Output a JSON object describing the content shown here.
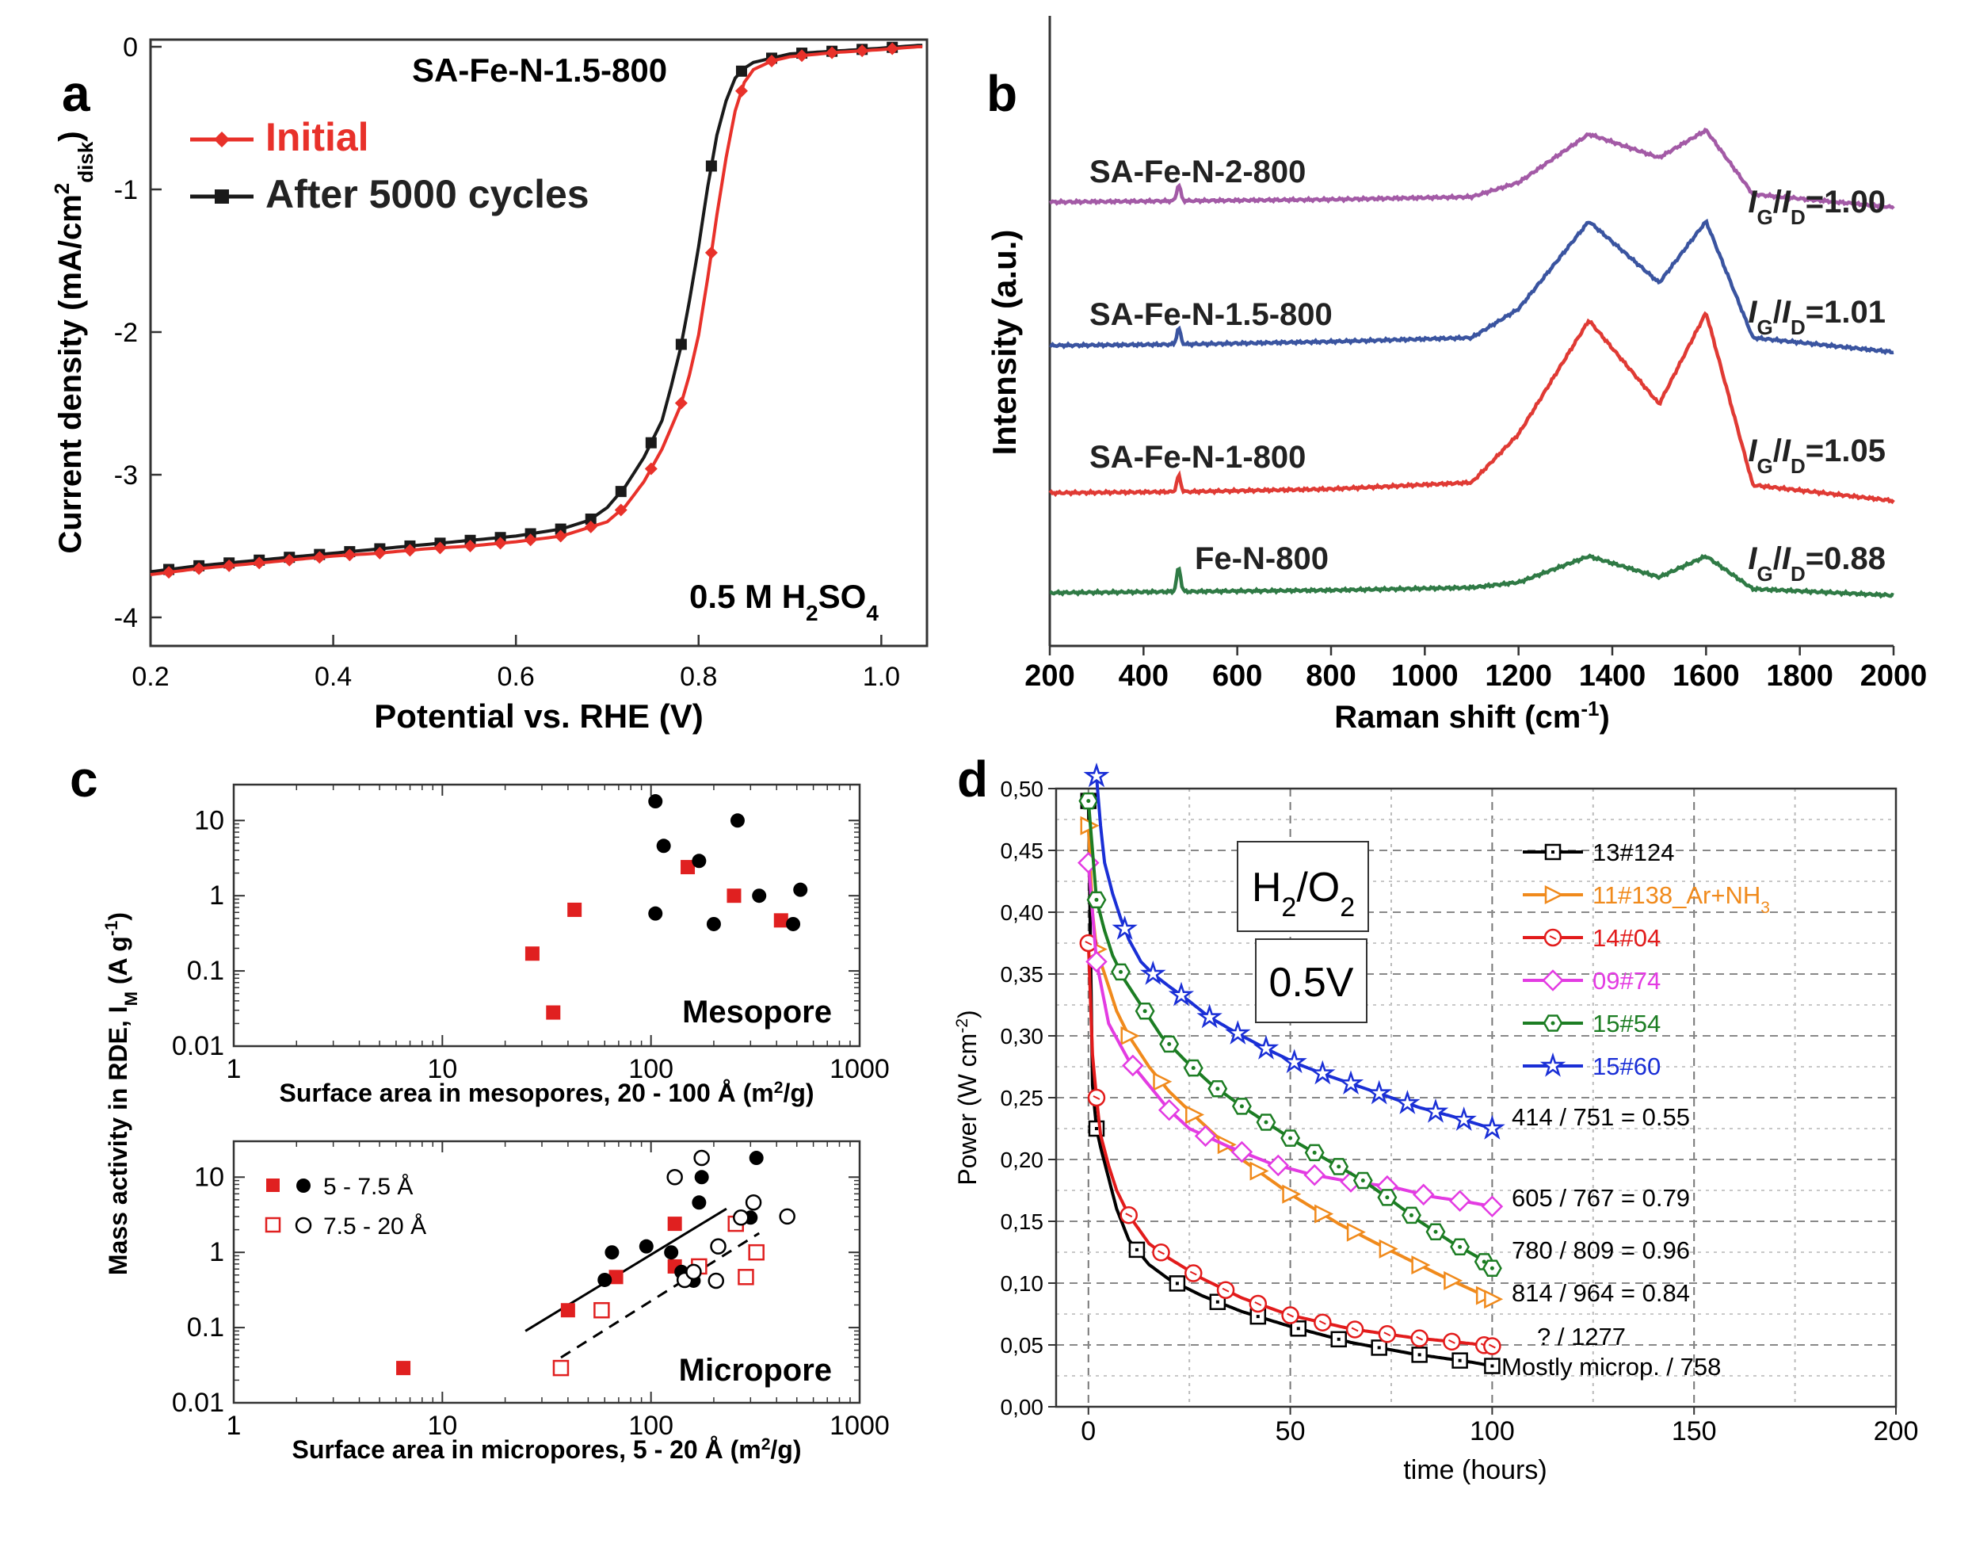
{
  "chart_data": [
    {
      "panel": "a",
      "type": "line",
      "title": "SA-Fe-N-1.5-800",
      "annotation": "0.5 M H2SO4",
      "xlabel": "Potential vs. RHE (V)",
      "ylabel": "Current density (mA/cm2disk)",
      "xlim": [
        0.2,
        1.05
      ],
      "ylim": [
        -4.2,
        0.05
      ],
      "xticks": [
        "0.2",
        "0.4",
        "0.6",
        "0.8",
        "1.0"
      ],
      "yticks": [
        "0",
        "-1",
        "-2",
        "-3",
        "-4"
      ],
      "legend_position": "top-left",
      "colors": {
        "Initial": "#e8312a",
        "After 5000 cycles": "#1a1a1a"
      },
      "series": [
        {
          "name": "Initial",
          "x": [
            0.2,
            0.25,
            0.3,
            0.35,
            0.4,
            0.45,
            0.5,
            0.55,
            0.6,
            0.65,
            0.7,
            0.72,
            0.74,
            0.76,
            0.78,
            0.79,
            0.8,
            0.81,
            0.82,
            0.83,
            0.84,
            0.85,
            0.86,
            0.88,
            0.9,
            0.95,
            1.0,
            1.04
          ],
          "y": [
            -3.7,
            -3.66,
            -3.63,
            -3.6,
            -3.57,
            -3.55,
            -3.52,
            -3.5,
            -3.47,
            -3.43,
            -3.33,
            -3.22,
            -3.05,
            -2.82,
            -2.52,
            -2.3,
            -2.02,
            -1.62,
            -1.18,
            -0.78,
            -0.45,
            -0.25,
            -0.16,
            -0.1,
            -0.07,
            -0.04,
            -0.02,
            0.0
          ]
        },
        {
          "name": "After 5000 cycles",
          "x": [
            0.2,
            0.25,
            0.3,
            0.35,
            0.4,
            0.45,
            0.5,
            0.55,
            0.6,
            0.65,
            0.68,
            0.7,
            0.72,
            0.74,
            0.76,
            0.77,
            0.78,
            0.79,
            0.8,
            0.81,
            0.82,
            0.83,
            0.84,
            0.85,
            0.86,
            0.88,
            0.9,
            0.95,
            1.0,
            1.04
          ],
          "y": [
            -3.68,
            -3.64,
            -3.61,
            -3.58,
            -3.55,
            -3.52,
            -3.49,
            -3.46,
            -3.43,
            -3.38,
            -3.32,
            -3.23,
            -3.08,
            -2.88,
            -2.62,
            -2.38,
            -2.12,
            -1.78,
            -1.4,
            -0.98,
            -0.62,
            -0.38,
            -0.22,
            -0.15,
            -0.11,
            -0.08,
            -0.05,
            -0.03,
            -0.01,
            0.01
          ]
        }
      ]
    },
    {
      "panel": "b",
      "type": "line",
      "xlabel": "Raman shift (cm-1)",
      "ylabel": "Intensity (a.u.)",
      "xlim": [
        200,
        2000
      ],
      "xticks": [
        "200",
        "400",
        "600",
        "800",
        "1000",
        "1200",
        "1400",
        "1600",
        "1800",
        "2000"
      ],
      "grid": false,
      "series": [
        {
          "name": "SA-Fe-N-2-800",
          "ratio": "IG/ID=1.00",
          "color": "#a35aa6",
          "x": [
            200,
            500,
            800,
            1100,
            1200,
            1350,
            1500,
            1600,
            1700,
            2000
          ],
          "y": [
            0.0,
            0.01,
            0.02,
            0.04,
            0.15,
            0.52,
            0.34,
            0.55,
            0.06,
            -0.04
          ]
        },
        {
          "name": "SA-Fe-N-1.5-800",
          "ratio": "IG/ID=1.01",
          "color": "#3a54a0",
          "x": [
            200,
            500,
            800,
            1100,
            1200,
            1350,
            1500,
            1600,
            1700,
            2000
          ],
          "y": [
            0.0,
            0.01,
            0.03,
            0.06,
            0.28,
            0.95,
            0.48,
            0.95,
            0.06,
            -0.05
          ]
        },
        {
          "name": "SA-Fe-N-1-800",
          "ratio": "IG/ID=1.05",
          "color": "#e03a34",
          "x": [
            200,
            500,
            800,
            1100,
            1200,
            1350,
            1500,
            1600,
            1700,
            2000
          ],
          "y": [
            0.0,
            0.01,
            0.03,
            0.08,
            0.45,
            1.32,
            0.68,
            1.38,
            0.06,
            -0.06
          ]
        },
        {
          "name": "Fe-N-800",
          "ratio": "IG/ID=0.88",
          "color": "#2f7a45",
          "x": [
            200,
            500,
            800,
            1100,
            1200,
            1350,
            1500,
            1600,
            1700,
            2000
          ],
          "y": [
            0.0,
            0.01,
            0.02,
            0.04,
            0.08,
            0.28,
            0.12,
            0.28,
            0.03,
            -0.02
          ]
        }
      ]
    },
    {
      "panel": "c",
      "type": "scatter",
      "ylabel": "Mass activity in RDE, IM (A g-1)",
      "subplots": [
        {
          "name": "Mesopore",
          "xlabel": "Surface area in mesopores, 20 - 100 Å (m2/g)",
          "xscale": "log",
          "yscale": "log",
          "xlim": [
            1,
            1000
          ],
          "ylim": [
            0.01,
            30
          ],
          "xticks": [
            "1",
            "10",
            "100",
            "1000"
          ],
          "yticks": [
            "0.01",
            "0.1",
            "1",
            "10"
          ],
          "series": [
            {
              "marker": "filled-square",
              "color": "#e02020",
              "points": [
                [
                  27,
                  0.17
                ],
                [
                  34,
                  0.028
                ],
                [
                  43,
                  0.65
                ],
                [
                  150,
                  2.4
                ],
                [
                  250,
                  1.0
                ],
                [
                  420,
                  0.47
                ]
              ]
            },
            {
              "marker": "filled-circle",
              "color": "#000000",
              "points": [
                [
                  105,
                  18
                ],
                [
                  115,
                  4.6
                ],
                [
                  170,
                  2.9
                ],
                [
                  105,
                  0.58
                ],
                [
                  200,
                  0.42
                ],
                [
                  260,
                  10
                ],
                [
                  330,
                  1.0
                ],
                [
                  480,
                  0.42
                ],
                [
                  520,
                  1.2
                ]
              ]
            }
          ]
        },
        {
          "name": "Micropore",
          "xlabel": "Surface area in micropores, 5 - 20 Å (m2/g)",
          "xscale": "log",
          "yscale": "log",
          "xlim": [
            1,
            1000
          ],
          "ylim": [
            0.01,
            30
          ],
          "xticks": [
            "1",
            "10",
            "100",
            "1000"
          ],
          "yticks": [
            "0.01",
            "0.1",
            "1",
            "10"
          ],
          "legend": [
            "5 - 7.5 Å",
            "7.5 - 20 Å"
          ],
          "legend_position": "top-left",
          "series": [
            {
              "name": "5 - 7.5 Å",
              "marker": "filled-square",
              "color": "#e02020",
              "points": [
                [
                  6.5,
                  0.029
                ],
                [
                  40,
                  0.17
                ],
                [
                  68,
                  0.47
                ],
                [
                  130,
                  2.4
                ],
                [
                  130,
                  0.65
                ]
              ]
            },
            {
              "name": "5 - 7.5 Å",
              "marker": "filled-circle",
              "color": "#000000",
              "points": [
                [
                  60,
                  0.43
                ],
                [
                  65,
                  1.0
                ],
                [
                  95,
                  1.2
                ],
                [
                  125,
                  1.0
                ],
                [
                  140,
                  0.55
                ],
                [
                  160,
                  0.42
                ],
                [
                  170,
                  4.6
                ],
                [
                  175,
                  10
                ],
                [
                  300,
                  2.9
                ],
                [
                  320,
                  18
                ]
              ]
            },
            {
              "name": "7.5 - 20 Å",
              "marker": "open-square",
              "color": "#e02020",
              "points": [
                [
                  37,
                  0.029
                ],
                [
                  58,
                  0.17
                ],
                [
                  170,
                  0.65
                ],
                [
                  255,
                  2.4
                ],
                [
                  285,
                  0.47
                ],
                [
                  320,
                  1.0
                ]
              ]
            },
            {
              "name": "7.5 - 20 Å",
              "marker": "open-circle",
              "color": "#000000",
              "points": [
                [
                  130,
                  10
                ],
                [
                  145,
                  0.43
                ],
                [
                  160,
                  0.55
                ],
                [
                  175,
                  18
                ],
                [
                  205,
                  0.42
                ],
                [
                  210,
                  1.2
                ],
                [
                  270,
                  2.9
                ],
                [
                  310,
                  4.6
                ],
                [
                  450,
                  3.0
                ]
              ]
            }
          ],
          "fits": [
            {
              "style": "solid",
              "x": [
                25,
                230
              ],
              "y": [
                0.09,
                3.8
              ]
            },
            {
              "style": "dashed",
              "x": [
                37,
                330
              ],
              "y": [
                0.04,
                1.8
              ]
            }
          ]
        }
      ]
    },
    {
      "panel": "d",
      "type": "line",
      "xlabel": "time (hours)",
      "ylabel": "Power (W cm-2)",
      "xlim": [
        -8,
        200
      ],
      "ylim": [
        0,
        0.5
      ],
      "xticks": [
        "0",
        "50",
        "100",
        "150",
        "200"
      ],
      "yticks": [
        "0,00",
        "0,05",
        "0,10",
        "0,15",
        "0,20",
        "0,25",
        "0,30",
        "0,35",
        "0,40",
        "0,45",
        "0,50"
      ],
      "grid": true,
      "boxes": [
        "H2/O2",
        "0.5V"
      ],
      "legend_position": "top-right",
      "series": [
        {
          "name": "13#124",
          "color": "#000000",
          "marker": "square",
          "annotation": "Mostly microp. / 758",
          "x": [
            0,
            1,
            2,
            3,
            5,
            7,
            10,
            15,
            20,
            28,
            38,
            50,
            65,
            80,
            95,
            100
          ],
          "y": [
            0.49,
            0.26,
            0.225,
            0.21,
            0.185,
            0.16,
            0.135,
            0.115,
            0.103,
            0.09,
            0.077,
            0.065,
            0.052,
            0.043,
            0.036,
            0.033
          ]
        },
        {
          "name": "11#138_Ar+NH3",
          "color": "#f08a1c",
          "marker": "right-triangle",
          "annotation": "814 / 964 = 0.84",
          "x": [
            0,
            1,
            2,
            4,
            7,
            10,
            15,
            20,
            28,
            38,
            50,
            62,
            75,
            88,
            100
          ],
          "y": [
            0.47,
            0.4,
            0.37,
            0.35,
            0.32,
            0.3,
            0.275,
            0.255,
            0.23,
            0.2,
            0.172,
            0.148,
            0.126,
            0.105,
            0.087
          ]
        },
        {
          "name": "14#04",
          "color": "#e21b1b",
          "marker": "circle-dot",
          "annotation": "? / 1277",
          "x": [
            0,
            1,
            2,
            3,
            5,
            7,
            10,
            15,
            20,
            28,
            38,
            50,
            65,
            80,
            95,
            100
          ],
          "y": [
            0.375,
            0.285,
            0.25,
            0.22,
            0.195,
            0.175,
            0.155,
            0.132,
            0.12,
            0.104,
            0.088,
            0.074,
            0.063,
            0.056,
            0.051,
            0.049
          ]
        },
        {
          "name": "09#74",
          "color": "#e33be2",
          "marker": "diamond",
          "annotation": "605 / 767 = 0.79",
          "x": [
            0,
            2,
            5,
            10,
            15,
            20,
            25,
            35,
            45,
            55,
            65,
            75,
            85,
            95,
            100
          ],
          "y": [
            0.44,
            0.36,
            0.31,
            0.28,
            0.26,
            0.24,
            0.225,
            0.21,
            0.197,
            0.188,
            0.182,
            0.178,
            0.17,
            0.165,
            0.162
          ]
        },
        {
          "name": "15#54",
          "color": "#1c7d23",
          "marker": "hexagon",
          "annotation": "780 / 809 = 0.96",
          "x": [
            0,
            1,
            2,
            4,
            6,
            9,
            13,
            18,
            24,
            30,
            38,
            45,
            52,
            60,
            68,
            75,
            82,
            90,
            97,
            100
          ],
          "y": [
            0.49,
            0.45,
            0.41,
            0.385,
            0.365,
            0.345,
            0.325,
            0.3,
            0.28,
            0.262,
            0.243,
            0.228,
            0.213,
            0.198,
            0.183,
            0.167,
            0.15,
            0.133,
            0.12,
            0.112
          ]
        },
        {
          "name": "15#60",
          "color": "#1a2fd6",
          "marker": "star",
          "annotation": "414 / 751 = 0.55",
          "x": [
            2,
            3,
            4,
            6,
            8,
            10,
            13,
            16,
            20,
            25,
            30,
            38,
            45,
            52,
            60,
            68,
            75,
            82,
            90,
            97,
            100
          ],
          "y": [
            0.51,
            0.47,
            0.44,
            0.415,
            0.395,
            0.378,
            0.36,
            0.35,
            0.34,
            0.328,
            0.315,
            0.3,
            0.288,
            0.277,
            0.267,
            0.258,
            0.25,
            0.242,
            0.235,
            0.228,
            0.225
          ]
        }
      ]
    }
  ]
}
